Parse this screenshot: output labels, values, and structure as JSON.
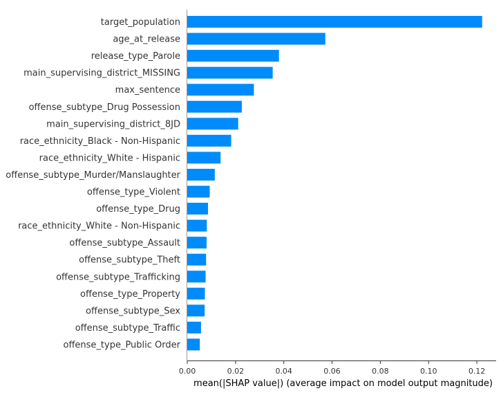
{
  "chart_data": {
    "type": "bar",
    "orientation": "horizontal",
    "title": "",
    "xlabel": "mean(|SHAP value|) (average impact on model output magnitude)",
    "ylabel": "",
    "xlim": [
      0,
      0.128
    ],
    "xticks": [
      0.0,
      0.02,
      0.04,
      0.06,
      0.08,
      0.1,
      0.12
    ],
    "xtick_labels": [
      "0.00",
      "0.02",
      "0.04",
      "0.06",
      "0.08",
      "0.10",
      "0.12"
    ],
    "grid": false,
    "bar_color": "#008bfb",
    "categories": [
      "target_population",
      "age_at_release",
      "release_type_Parole",
      "main_supervising_district_MISSING",
      "max_sentence",
      "offense_subtype_Drug Possession",
      "main_supervising_district_8JD",
      "race_ethnicity_Black - Non-Hispanic",
      "race_ethnicity_White - Hispanic",
      "offense_subtype_Murder/Manslaughter",
      "offense_type_Violent",
      "offense_type_Drug",
      "race_ethnicity_White - Non-Hispanic",
      "offense_subtype_Assault",
      "offense_subtype_Theft",
      "offense_subtype_Trafficking",
      "offense_type_Property",
      "offense_subtype_Sex",
      "offense_subtype_Traffic",
      "offense_type_Public Order"
    ],
    "values": [
      0.1222,
      0.0572,
      0.038,
      0.0354,
      0.0276,
      0.0226,
      0.0211,
      0.0182,
      0.0138,
      0.0114,
      0.0093,
      0.0086,
      0.0081,
      0.008,
      0.0078,
      0.0076,
      0.0073,
      0.0072,
      0.0057,
      0.0052
    ]
  }
}
